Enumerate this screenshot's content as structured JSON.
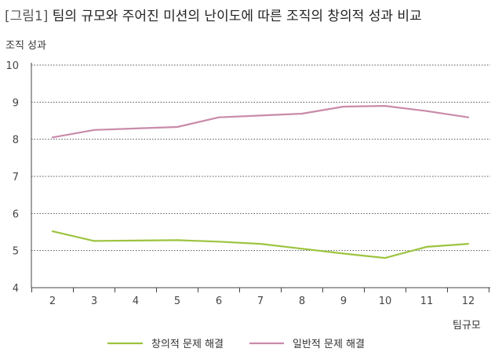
{
  "chart_data": {
    "type": "line",
    "title_tag": "[그림1]",
    "title": "팀의 규모와 주어진 미션의 난이도에 따른 조직의 창의적 성과 비교",
    "ylabel": "조직 성과",
    "xlabel": "팀규모",
    "x": [
      2,
      3,
      4,
      5,
      6,
      7,
      8,
      9,
      10,
      11,
      12
    ],
    "ylim": [
      4,
      10
    ],
    "yticks": [
      4,
      5,
      6,
      7,
      8,
      9,
      10
    ],
    "grid": "horizontal-dotted",
    "legend_position": "bottom-center",
    "series": [
      {
        "name": "창의적 문제 해결",
        "color": "#9cc43f",
        "values": [
          5.52,
          5.26,
          5.27,
          5.28,
          5.24,
          5.18,
          5.05,
          4.92,
          4.8,
          5.1,
          5.18
        ]
      },
      {
        "name": "일반적 문제 해결",
        "color": "#c98aaa",
        "values": [
          8.05,
          8.25,
          8.29,
          8.33,
          8.59,
          8.64,
          8.69,
          8.88,
          8.9,
          8.76,
          8.59
        ]
      }
    ]
  }
}
